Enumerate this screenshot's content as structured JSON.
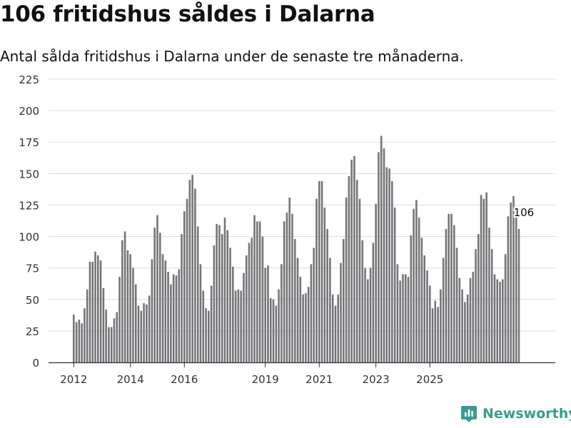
{
  "header": {
    "title": "106 fritidshus såldes i Dalarna",
    "subtitle": "Antal sålda fritidshus i Dalarna under de senaste tre månaderna."
  },
  "brand": {
    "name": "Newsworthy",
    "icon": "newsworthy-logo-icon"
  },
  "colors": {
    "bar": "#757479",
    "highlight": "#26a39c",
    "grid": "#dcdcdc",
    "axis": "#333333"
  },
  "chart_data": {
    "type": "bar",
    "title": "106 fritidshus såldes i Dalarna",
    "subtitle": "Antal sålda fritidshus i Dalarna under de senaste tre månaderna.",
    "xlabel": "",
    "ylabel": "",
    "ylim": [
      0,
      225
    ],
    "y_ticks": [
      0,
      25,
      50,
      75,
      100,
      125,
      150,
      175,
      200,
      225
    ],
    "grid": true,
    "x_ticks": [
      {
        "label": "2012",
        "index": 0
      },
      {
        "label": "2014",
        "index": 21
      },
      {
        "label": "2016",
        "index": 41
      },
      {
        "label": "2019",
        "index": 71
      },
      {
        "label": "2021",
        "index": 91
      },
      {
        "label": "2023",
        "index": 112
      },
      {
        "label": "2025",
        "index": 132
      }
    ],
    "series": [
      {
        "name": "Sålda fritidshus",
        "values": [
          38,
          32,
          34,
          31,
          43,
          58,
          80,
          80,
          88,
          85,
          81,
          59,
          42,
          28,
          28,
          35,
          40,
          68,
          97,
          104,
          89,
          86,
          75,
          62,
          45,
          41,
          47,
          46,
          53,
          82,
          107,
          117,
          103,
          86,
          81,
          72,
          62,
          70,
          69,
          74,
          102,
          120,
          130,
          145,
          149,
          138,
          108,
          78,
          57,
          43,
          41,
          61,
          93,
          110,
          109,
          102,
          115,
          105,
          91,
          76,
          57,
          58,
          57,
          71,
          85,
          95,
          99,
          117,
          112,
          112,
          100,
          75,
          77,
          51,
          50,
          45,
          58,
          78,
          112,
          119,
          131,
          118,
          98,
          83,
          68,
          54,
          55,
          60,
          78,
          91,
          130,
          144,
          144,
          123,
          106,
          83,
          54,
          45,
          54,
          79,
          98,
          131,
          148,
          161,
          164,
          145,
          130,
          97,
          75,
          66,
          75,
          95,
          126,
          167,
          180,
          170,
          155,
          154,
          144,
          123,
          78,
          65,
          70,
          70,
          68,
          101,
          122,
          129,
          115,
          99,
          85,
          73,
          61,
          43,
          49,
          44,
          58,
          83,
          106,
          118,
          118,
          109,
          91,
          67,
          58,
          48,
          54,
          67,
          72,
          90,
          102,
          133,
          130,
          135,
          107,
          90,
          70,
          66,
          64,
          66,
          86,
          116,
          127,
          132,
          118,
          106
        ]
      }
    ],
    "highlight": {
      "index": 170,
      "value": 106,
      "label": "106"
    }
  }
}
